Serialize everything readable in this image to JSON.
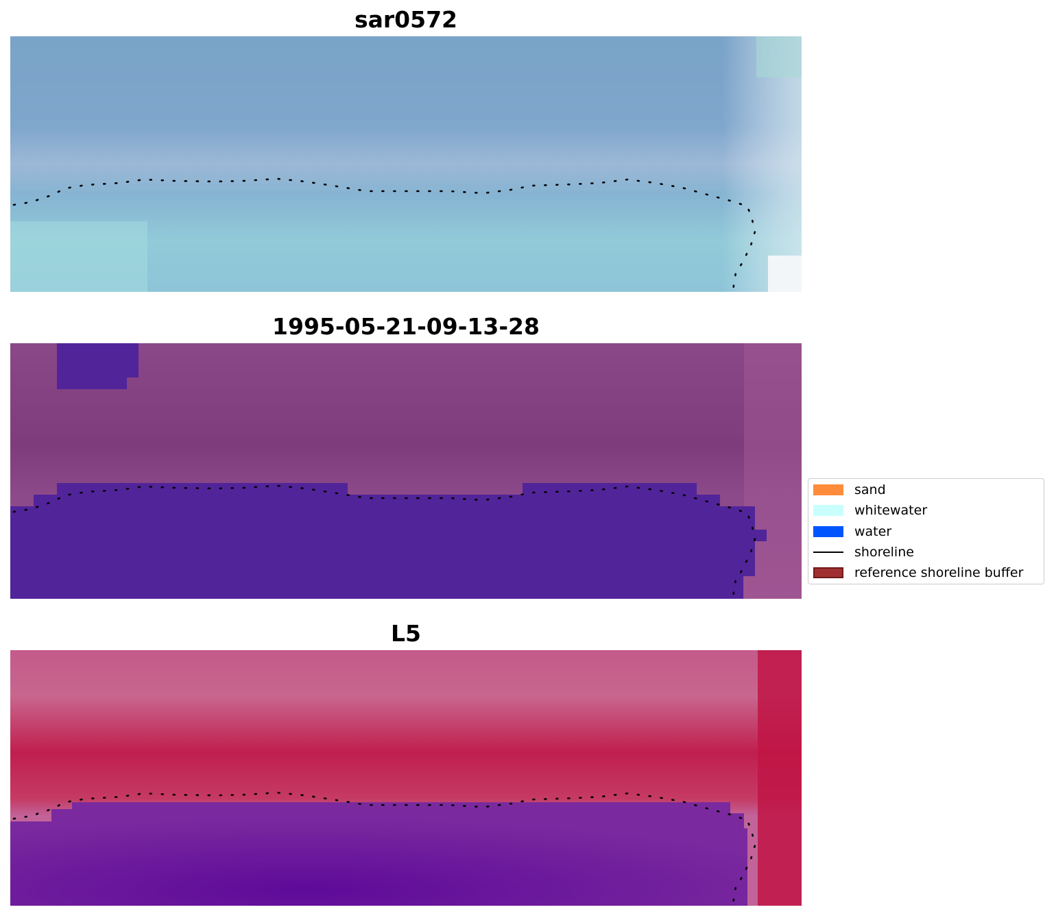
{
  "panels": [
    {
      "title": "sar0572",
      "style": "true-color",
      "base": "#80a6c8",
      "accent": "#a6dde0"
    },
    {
      "title": "1995-05-21-09-13-28",
      "style": "classified",
      "base": "#8a4788",
      "water": "#52249a"
    },
    {
      "title": "L5",
      "style": "index",
      "land": "#c21c4e",
      "water": "#6d1aa0"
    }
  ],
  "legend": {
    "items": [
      {
        "label": "sand",
        "type": "patch",
        "color": "#ff8c3a"
      },
      {
        "label": "whitewater",
        "type": "patch",
        "color": "#c8fffd"
      },
      {
        "label": "water",
        "type": "patch",
        "color": "#0055ff"
      },
      {
        "label": "shoreline",
        "type": "line",
        "color": "#000000"
      },
      {
        "label": "reference shoreline buffer",
        "type": "patch",
        "color": "#a03030",
        "edge": "#6e1a1a"
      }
    ]
  }
}
